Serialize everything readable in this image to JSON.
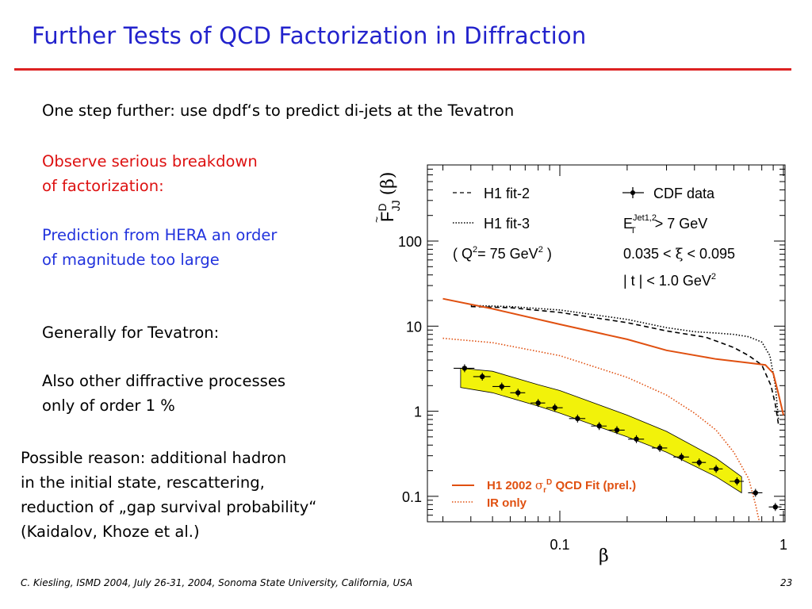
{
  "slide": {
    "title": "Further Tests of QCD Factorization in Diffraction",
    "intro": "One step further: use dpdf‘s to predict di-jets at the Tevatron",
    "observe_line1": "Observe serious breakdown",
    "observe_line2": "of factorization:",
    "prediction_line1": "Prediction from HERA an order",
    "prediction_line2": "of magnitude too large",
    "generally": "Generally for Tevatron:",
    "also_line1": "Also other diffractive processes",
    "also_line2": "only of order 1 %",
    "reason_line1": "Possible reason: additional hadron",
    "reason_line2": "in the initial state, rescattering,",
    "reason_line3": "reduction of „gap survival probability“",
    "reason_line4": "(Kaidalov, Khoze et al.)",
    "footer": "C. Kiesling, ISMD 2004, July 26-31, 2004, Sonoma State University, California, USA",
    "page_number": "23"
  },
  "colors": {
    "title": "#2222cc",
    "rule": "#dd2222",
    "red_text": "#dd1111",
    "blue_text": "#2233dd",
    "h1_fit": "#e05010",
    "band": "#f2f20a"
  },
  "chart_data": {
    "type": "line",
    "xscale": "log",
    "yscale": "log",
    "xlim": [
      0.03,
      1
    ],
    "ylim": [
      0.05,
      300
    ],
    "ylabel": "F̃ᴰJJ (β)",
    "xlabel": "β",
    "x_ticks": [
      "0.1",
      "1"
    ],
    "y_ticks": [
      "100",
      "10",
      "1",
      "0.1"
    ],
    "legend_top": {
      "fit2": "H1 fit-2",
      "fit3": "H1 fit-3",
      "q2": "( Q²= 75 GeV² )",
      "cdf": "CDF data",
      "et": "E_T^Jet1,2 > 7 GeV",
      "xi": "0.035 < ξ < 0.095",
      "t": "| t | < 1.0 GeV²"
    },
    "legend_bottom": {
      "solid": "H1 2002 σr^D QCD Fit (prel.)",
      "dotted": "IR only"
    },
    "series": [
      {
        "name": "H1 fit-2",
        "style": "dashed",
        "color": "#000000",
        "points": [
          [
            0.04,
            17
          ],
          [
            0.06,
            16.5
          ],
          [
            0.1,
            14.5
          ],
          [
            0.2,
            11
          ],
          [
            0.3,
            8.8
          ],
          [
            0.45,
            7.4
          ],
          [
            0.6,
            5.6
          ],
          [
            0.7,
            4.5
          ],
          [
            0.8,
            3.5
          ],
          [
            0.88,
            2
          ],
          [
            0.92,
            1.2
          ],
          [
            0.95,
            0.7
          ]
        ]
      },
      {
        "name": "H1 fit-3",
        "style": "dotted",
        "color": "#000000",
        "points": [
          [
            0.04,
            17.5
          ],
          [
            0.06,
            17
          ],
          [
            0.1,
            15.5
          ],
          [
            0.2,
            12
          ],
          [
            0.3,
            9.6
          ],
          [
            0.4,
            8.6
          ],
          [
            0.5,
            8.3
          ],
          [
            0.6,
            8
          ],
          [
            0.7,
            7.5
          ],
          [
            0.8,
            6.5
          ],
          [
            0.87,
            4.5
          ],
          [
            0.92,
            2
          ],
          [
            0.95,
            0.8
          ]
        ]
      },
      {
        "name": "H1 2002 σr^D QCD Fit (prel.)",
        "style": "solid",
        "color": "#e05010",
        "points": [
          [
            0.03,
            21
          ],
          [
            0.05,
            16
          ],
          [
            0.1,
            10.5
          ],
          [
            0.2,
            7
          ],
          [
            0.3,
            5.2
          ],
          [
            0.5,
            4.1
          ],
          [
            0.7,
            3.7
          ],
          [
            0.83,
            3.5
          ],
          [
            0.9,
            2.8
          ],
          [
            0.95,
            1.6
          ],
          [
            1.0,
            0.9
          ]
        ]
      },
      {
        "name": "IR only",
        "style": "dotted",
        "color": "#e05010",
        "points": [
          [
            0.03,
            7.2
          ],
          [
            0.05,
            6.4
          ],
          [
            0.1,
            4.5
          ],
          [
            0.2,
            2.5
          ],
          [
            0.3,
            1.55
          ],
          [
            0.4,
            0.95
          ],
          [
            0.5,
            0.6
          ],
          [
            0.6,
            0.33
          ],
          [
            0.7,
            0.16
          ],
          [
            0.75,
            0.08
          ],
          [
            0.78,
            0.05
          ]
        ]
      }
    ],
    "band": {
      "name": "H1 2002 σr^D QCD Fit (prel.) uncertainty band",
      "color": "#f2f20a",
      "upper": [
        [
          0.036,
          3.2
        ],
        [
          0.05,
          2.95
        ],
        [
          0.08,
          2.05
        ],
        [
          0.1,
          1.75
        ],
        [
          0.2,
          0.9
        ],
        [
          0.3,
          0.58
        ],
        [
          0.5,
          0.28
        ],
        [
          0.65,
          0.17
        ]
      ],
      "lower": [
        [
          0.036,
          1.9
        ],
        [
          0.05,
          1.65
        ],
        [
          0.08,
          1.15
        ],
        [
          0.1,
          0.95
        ],
        [
          0.2,
          0.5
        ],
        [
          0.3,
          0.33
        ],
        [
          0.5,
          0.17
        ],
        [
          0.65,
          0.11
        ]
      ]
    },
    "cdf_data": {
      "name": "CDF data",
      "points": [
        {
          "x": 0.0375,
          "y": 3.2,
          "xerr": 0.004
        },
        {
          "x": 0.045,
          "y": 2.55,
          "xerr": 0.004
        },
        {
          "x": 0.055,
          "y": 1.95,
          "xerr": 0.005
        },
        {
          "x": 0.065,
          "y": 1.65,
          "xerr": 0.005
        },
        {
          "x": 0.08,
          "y": 1.25,
          "xerr": 0.006
        },
        {
          "x": 0.095,
          "y": 1.1,
          "xerr": 0.008
        },
        {
          "x": 0.12,
          "y": 0.82,
          "xerr": 0.01
        },
        {
          "x": 0.15,
          "y": 0.67,
          "xerr": 0.012
        },
        {
          "x": 0.18,
          "y": 0.6,
          "xerr": 0.015
        },
        {
          "x": 0.22,
          "y": 0.47,
          "xerr": 0.018
        },
        {
          "x": 0.28,
          "y": 0.37,
          "xerr": 0.022
        },
        {
          "x": 0.35,
          "y": 0.29,
          "xerr": 0.028
        },
        {
          "x": 0.42,
          "y": 0.25,
          "xerr": 0.03
        },
        {
          "x": 0.5,
          "y": 0.21,
          "xerr": 0.035
        },
        {
          "x": 0.62,
          "y": 0.15,
          "xerr": 0.045
        },
        {
          "x": 0.75,
          "y": 0.11,
          "xerr": 0.055
        },
        {
          "x": 0.92,
          "y": 0.075,
          "xerr": 0.06
        }
      ]
    }
  }
}
